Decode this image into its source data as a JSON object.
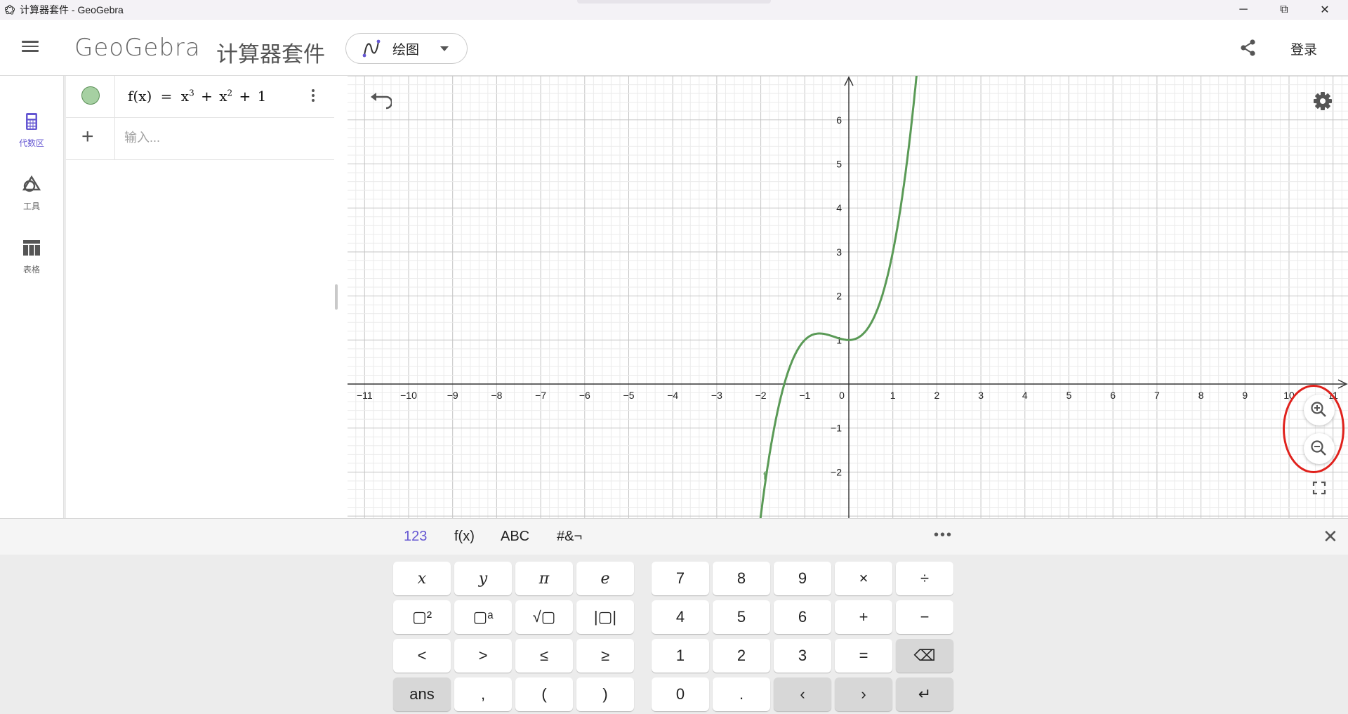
{
  "window": {
    "title": "计算器套件 - GeoGebra",
    "minimize_glyph": "─",
    "maximize_glyph": "⧉",
    "close_glyph": "✕"
  },
  "header": {
    "logo": "GeoGebra",
    "suite_title": "计算器套件",
    "app_select_label": "绘图",
    "login_label": "登录"
  },
  "rail": {
    "items": [
      {
        "label": "代数区",
        "icon": "calculator-icon",
        "active": true
      },
      {
        "label": "工具",
        "icon": "shapes-icon",
        "active": false
      },
      {
        "label": "表格",
        "icon": "table-icon",
        "active": false
      }
    ]
  },
  "algebra": {
    "function_expression": {
      "lhs": "f(x)",
      "eq": "=",
      "t1": "x",
      "e1": "3",
      "op1": "+",
      "t2": "x",
      "e2": "2",
      "op2": "+",
      "c": "1"
    },
    "input_placeholder": "输入...",
    "add_glyph": "+"
  },
  "graph": {
    "x_ticks": [
      "−11",
      "−10",
      "−9",
      "−8",
      "−7",
      "−6",
      "−5",
      "−4",
      "−3",
      "−2",
      "−1",
      "0",
      "1",
      "2",
      "3",
      "4",
      "5",
      "6",
      "7",
      "8",
      "9",
      "10",
      "11"
    ],
    "y_ticks": [
      "6",
      "5",
      "4",
      "3",
      "2",
      "1",
      "−1",
      "−2"
    ],
    "function_label": "f",
    "curve_color": "#5a9a56",
    "x_range": [
      -11.4,
      11.4
    ],
    "y_range": [
      -2.4,
      7.0
    ]
  },
  "keyboard": {
    "tabs": [
      "123",
      "f(x)",
      "ABC",
      "#&¬"
    ],
    "active_tab": "123",
    "more_glyph": "•••",
    "close_glyph": "✕",
    "left_keys": [
      [
        "x",
        "y",
        "π",
        "e"
      ],
      [
        "▢²",
        "▢ᵃ",
        "√▢",
        "|▢|"
      ],
      [
        "<",
        ">",
        "≤",
        "≥"
      ],
      [
        "ans",
        ",",
        "(",
        ")"
      ]
    ],
    "right_keys": [
      [
        "7",
        "8",
        "9",
        "×",
        "÷"
      ],
      [
        "4",
        "5",
        "6",
        "+",
        "−"
      ],
      [
        "1",
        "2",
        "3",
        "=",
        "⌫"
      ],
      [
        "0",
        ".",
        "‹",
        "›",
        "↵"
      ]
    ]
  }
}
